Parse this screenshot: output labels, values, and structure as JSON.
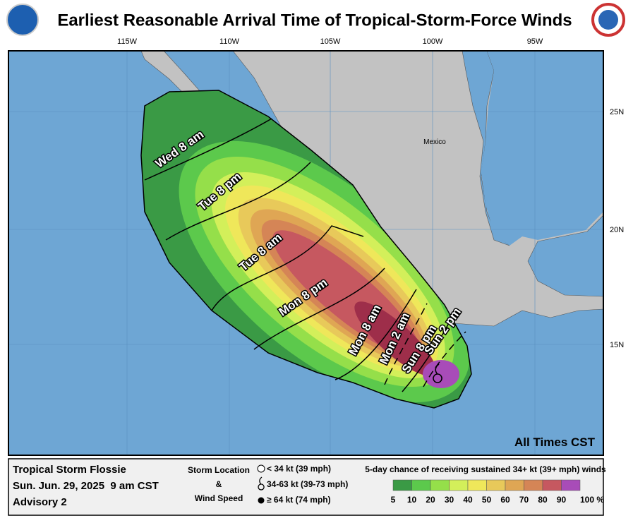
{
  "header": {
    "title": "Earliest Reasonable Arrival Time of Tropical-Storm-Force Winds"
  },
  "map": {
    "longitude_labels": [
      "115W",
      "110W",
      "105W",
      "100W",
      "95W"
    ],
    "latitude_labels": [
      "25N",
      "20N",
      "15N"
    ],
    "place_labels": [
      "Mexico"
    ],
    "time_labels": [
      "Wed 8 am",
      "Tue 8 pm",
      "Tue 8 am",
      "Mon 8 pm",
      "Mon 8 am",
      "Mon 2 am",
      "Sun 8 pm",
      "Sun 2 pm"
    ],
    "time_zone_note": "All Times CST"
  },
  "footer": {
    "storm": [
      "Tropical Storm Flossie",
      "Sun. Jun. 29, 2025  9 am CST",
      "Advisory 2"
    ],
    "key_title": [
      "Storm Location",
      "&",
      "Wind Speed"
    ],
    "key_items": [
      "< 34 kt (39 mph)",
      "34-63 kt (39-73 mph)",
      "≥ 64 kt (74 mph)"
    ],
    "colorbar_title": "5-day chance of receiving sustained 34+ kt (39+ mph) winds",
    "colorbar_labels": [
      "5",
      "10",
      "20",
      "30",
      "40",
      "50",
      "60",
      "70",
      "80",
      "90",
      "100 %"
    ],
    "colorbar_colors": [
      "#3a9a45",
      "#5cc94c",
      "#95df4a",
      "#d3ef5a",
      "#efe75a",
      "#e8c95a",
      "#dfa654",
      "#d58556",
      "#c65860",
      "#a84cb8"
    ]
  }
}
